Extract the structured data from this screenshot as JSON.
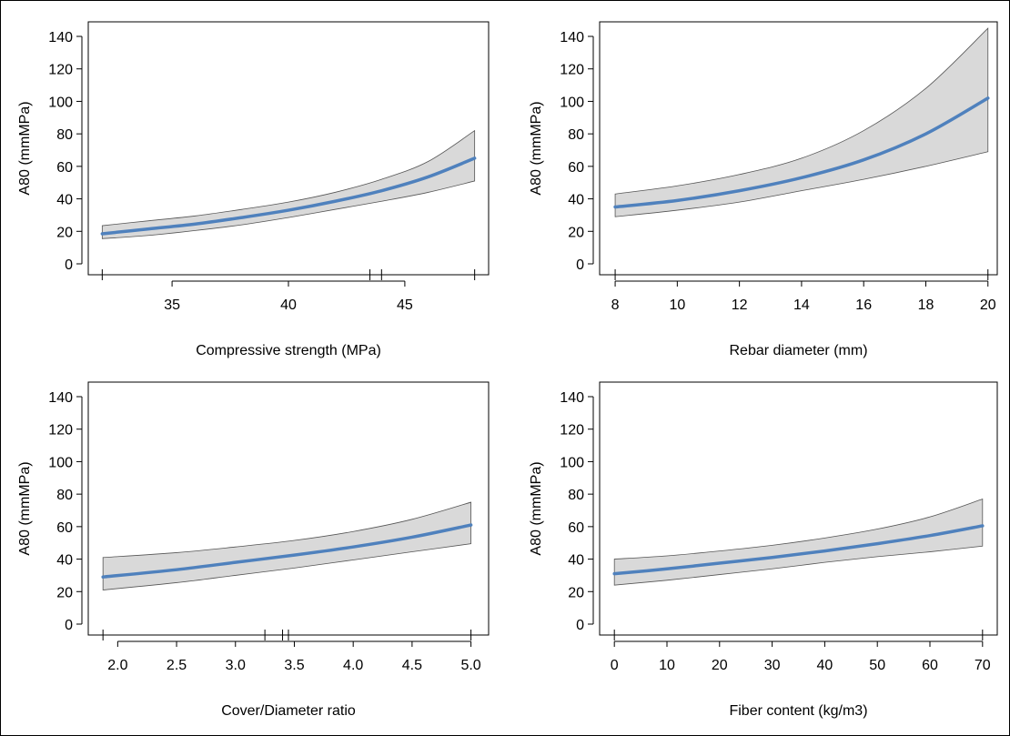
{
  "chart_data": [
    {
      "type": "line",
      "title": "",
      "xlabel": "Compressive strength (MPa)",
      "ylabel": "A80 (mmMPa)",
      "xlim": [
        31.4,
        48.6
      ],
      "ylim": [
        0,
        140
      ],
      "xticks": [
        35,
        40,
        45
      ],
      "yticks": [
        0,
        20,
        40,
        60,
        80,
        100,
        120,
        140
      ],
      "rug": [
        32,
        43.5,
        44,
        48
      ],
      "colors": {
        "line": "#4f81bd",
        "band": "#d9d9d9"
      },
      "x": [
        32,
        34,
        36,
        38,
        40,
        42,
        44,
        46,
        48
      ],
      "series": [
        {
          "name": "",
          "values": [
            18.5,
            21.5,
            24.5,
            28.5,
            33,
            38.5,
            45,
            53.5,
            65
          ]
        },
        {
          "name": "",
          "values": [
            23.5,
            26.5,
            29.5,
            33.5,
            38,
            44,
            52,
            63,
            82
          ]
        },
        {
          "name": "",
          "values": [
            15.5,
            17.5,
            20.5,
            24,
            28.5,
            33.5,
            38.5,
            44,
            51
          ]
        }
      ]
    },
    {
      "type": "line",
      "title": "",
      "xlabel": "Rebar diameter (mm)",
      "ylabel": "A80 (mmMPa)",
      "xlim": [
        7.5,
        20.3
      ],
      "ylim": [
        0,
        140
      ],
      "xticks": [
        8,
        10,
        12,
        14,
        16,
        18,
        20
      ],
      "yticks": [
        0,
        20,
        40,
        60,
        80,
        100,
        120,
        140
      ],
      "rug": [
        8,
        20
      ],
      "colors": {
        "line": "#4f81bd",
        "band": "#d9d9d9"
      },
      "x": [
        8,
        10,
        12,
        14,
        16,
        18,
        20
      ],
      "series": [
        {
          "name": "",
          "values": [
            35,
            39,
            45,
            53,
            64,
            80,
            102
          ]
        },
        {
          "name": "",
          "values": [
            43,
            48,
            55,
            65,
            82,
            108,
            145
          ]
        },
        {
          "name": "",
          "values": [
            29,
            33,
            38,
            45,
            52,
            60,
            69
          ]
        }
      ]
    },
    {
      "type": "line",
      "title": "",
      "xlabel": "Cover/Diameter ratio",
      "ylabel": "A80 (mmMPa)",
      "xlim": [
        1.75,
        5.15
      ],
      "ylim": [
        0,
        140
      ],
      "xticks": [
        2.0,
        2.5,
        3.0,
        3.5,
        4.0,
        4.5,
        5.0
      ],
      "xtick_labels": [
        "2.0",
        "2.5",
        "3.0",
        "3.5",
        "4.0",
        "4.5",
        "5.0"
      ],
      "yticks": [
        0,
        20,
        40,
        60,
        80,
        100,
        120,
        140
      ],
      "rug": [
        1.875,
        3.25,
        3.4,
        3.45,
        5.0
      ],
      "colors": {
        "line": "#4f81bd",
        "band": "#d9d9d9"
      },
      "x": [
        1.875,
        2.5,
        3.0,
        3.5,
        4.0,
        4.5,
        5.0
      ],
      "series": [
        {
          "name": "",
          "values": [
            29,
            33.5,
            38,
            42.5,
            47.5,
            53.5,
            61
          ]
        },
        {
          "name": "",
          "values": [
            41,
            44,
            47.5,
            51.5,
            57,
            64.5,
            75
          ]
        },
        {
          "name": "",
          "values": [
            21,
            25.5,
            30,
            34.5,
            39.5,
            44.5,
            49.5
          ]
        }
      ]
    },
    {
      "type": "line",
      "title": "",
      "xlabel": "Fiber content (kg/m3)",
      "ylabel": "A80 (mmMPa)",
      "xlim": [
        -2.8,
        72.8
      ],
      "ylim": [
        0,
        140
      ],
      "xticks": [
        0,
        10,
        20,
        30,
        40,
        50,
        60,
        70
      ],
      "yticks": [
        0,
        20,
        40,
        60,
        80,
        100,
        120,
        140
      ],
      "rug": [
        0,
        70
      ],
      "colors": {
        "line": "#4f81bd",
        "band": "#d9d9d9"
      },
      "x": [
        0,
        10,
        20,
        30,
        40,
        50,
        60,
        70
      ],
      "series": [
        {
          "name": "",
          "values": [
            31,
            34,
            37.5,
            41,
            45,
            49.5,
            54.5,
            60.5
          ]
        },
        {
          "name": "",
          "values": [
            40,
            42,
            45,
            48.5,
            53,
            58.5,
            66,
            77
          ]
        },
        {
          "name": "",
          "values": [
            24,
            27,
            30.5,
            34,
            38,
            41.5,
            44.5,
            48
          ]
        }
      ]
    }
  ]
}
